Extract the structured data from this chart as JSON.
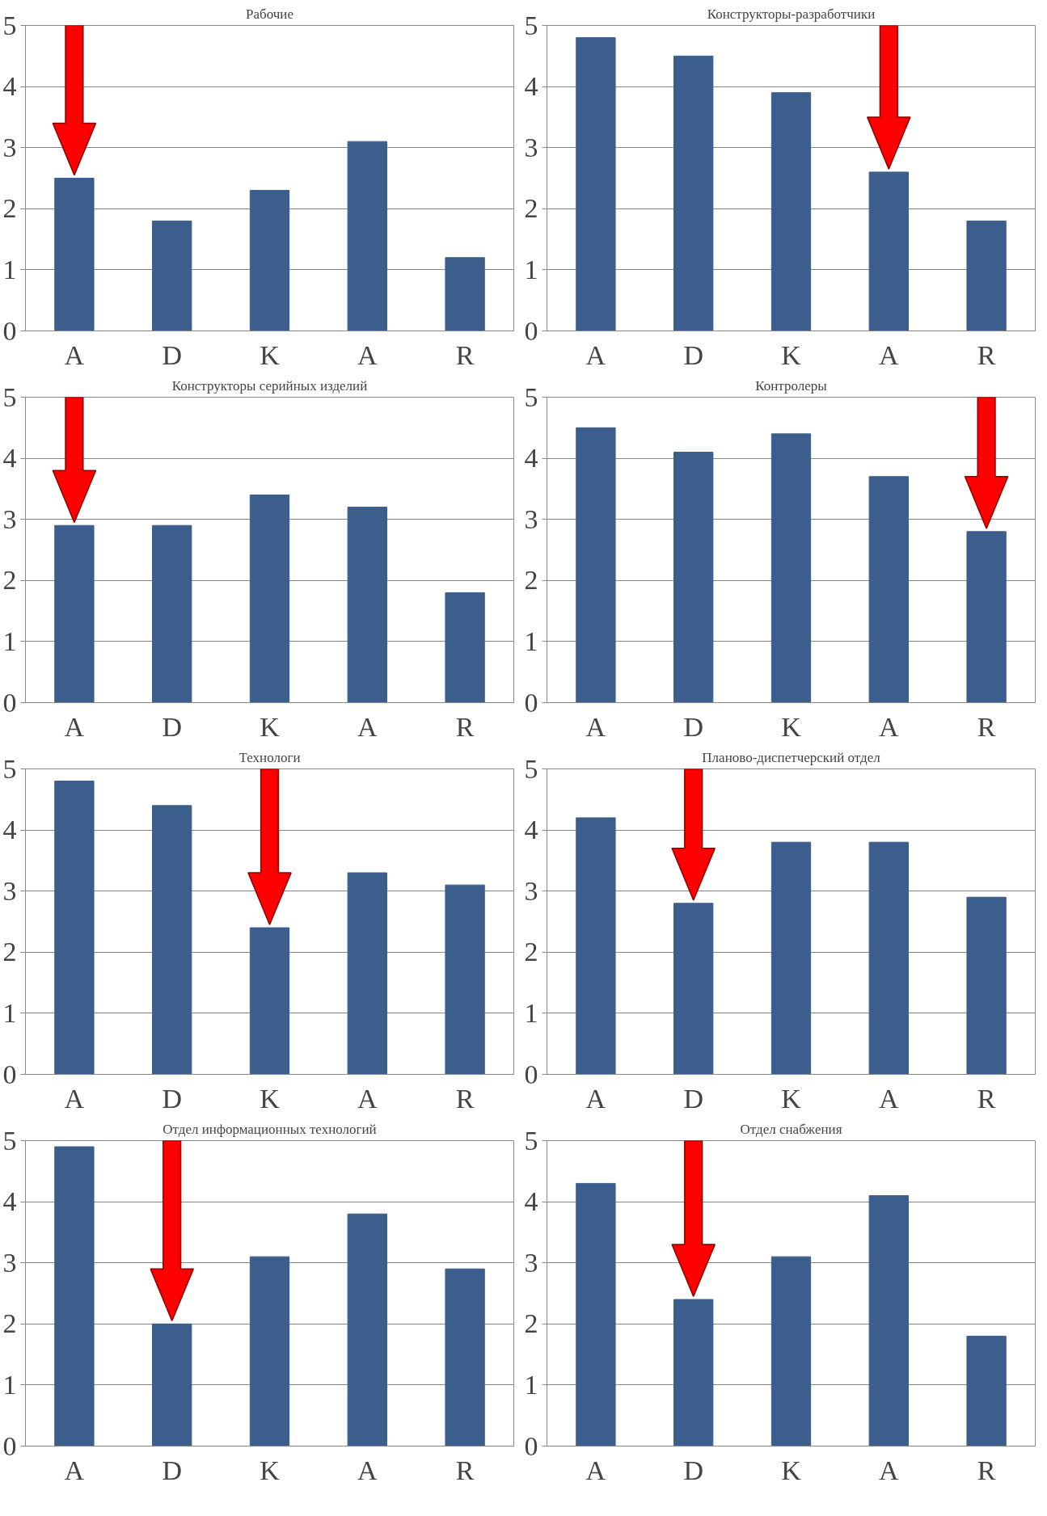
{
  "chart_data": [
    {
      "type": "bar",
      "title": "Рабочие",
      "categories": [
        "A",
        "D",
        "K",
        "A",
        "R"
      ],
      "values": [
        2.5,
        1.8,
        2.3,
        3.1,
        1.2
      ],
      "color": "#3b5e8c",
      "ylim": [
        0,
        5
      ],
      "yticks": [
        0,
        1,
        2,
        3,
        4,
        5
      ],
      "grid": "y"
    },
    {
      "type": "bar",
      "title": "Конструкторы-разработчики",
      "categories": [
        "A",
        "D",
        "K",
        "A",
        "R"
      ],
      "values": [
        4.8,
        4.5,
        3.9,
        2.6,
        1.8
      ],
      "color": "#3b5e8c",
      "ylim": [
        0,
        5
      ],
      "yticks": [
        0,
        1,
        2,
        3,
        4,
        5
      ],
      "grid": "y"
    },
    {
      "type": "bar",
      "title": "Конструкторы серийных изделий",
      "categories": [
        "A",
        "D",
        "K",
        "A",
        "R"
      ],
      "values": [
        2.9,
        2.9,
        3.4,
        3.2,
        1.8
      ],
      "color": "#3b5e8c",
      "ylim": [
        0,
        5
      ],
      "yticks": [
        0,
        1,
        2,
        3,
        4,
        5
      ],
      "grid": "y"
    },
    {
      "type": "bar",
      "title": "Контролеры",
      "categories": [
        "A",
        "D",
        "K",
        "A",
        "R"
      ],
      "values": [
        4.5,
        4.1,
        4.4,
        3.7,
        2.8
      ],
      "color": "#3b5e8c",
      "ylim": [
        0,
        5
      ],
      "yticks": [
        0,
        1,
        2,
        3,
        4,
        5
      ],
      "grid": "y"
    },
    {
      "type": "bar",
      "title": "Технологи",
      "categories": [
        "A",
        "D",
        "K",
        "A",
        "R"
      ],
      "values": [
        4.8,
        4.4,
        2.4,
        3.3,
        3.1
      ],
      "color": "#3b5e8c",
      "ylim": [
        0,
        5
      ],
      "yticks": [
        0,
        1,
        2,
        3,
        4,
        5
      ],
      "grid": "y"
    },
    {
      "type": "bar",
      "title": "Планово-диспетчерский отдел",
      "categories": [
        "A",
        "D",
        "K",
        "A",
        "R"
      ],
      "values": [
        4.2,
        2.8,
        3.8,
        3.8,
        2.9
      ],
      "color": "#3b5e8c",
      "ylim": [
        0,
        5
      ],
      "yticks": [
        0,
        1,
        2,
        3,
        4,
        5
      ],
      "grid": "y"
    },
    {
      "type": "bar",
      "title": "Отдел информационных технологий",
      "categories": [
        "A",
        "D",
        "K",
        "A",
        "R"
      ],
      "values": [
        4.9,
        2.0,
        3.1,
        3.8,
        2.9
      ],
      "color": "#3b5e8c",
      "ylim": [
        0,
        5
      ],
      "yticks": [
        0,
        1,
        2,
        3,
        4,
        5
      ],
      "grid": "y"
    },
    {
      "type": "bar",
      "title": "Отдел снабжения",
      "categories": [
        "A",
        "D",
        "K",
        "A",
        "R"
      ],
      "values": [
        4.3,
        2.4,
        3.1,
        4.1,
        1.8
      ],
      "color": "#3b5e8c",
      "ylim": [
        0,
        5
      ],
      "yticks": [
        0,
        1,
        2,
        3,
        4,
        5
      ],
      "grid": "y"
    }
  ]
}
